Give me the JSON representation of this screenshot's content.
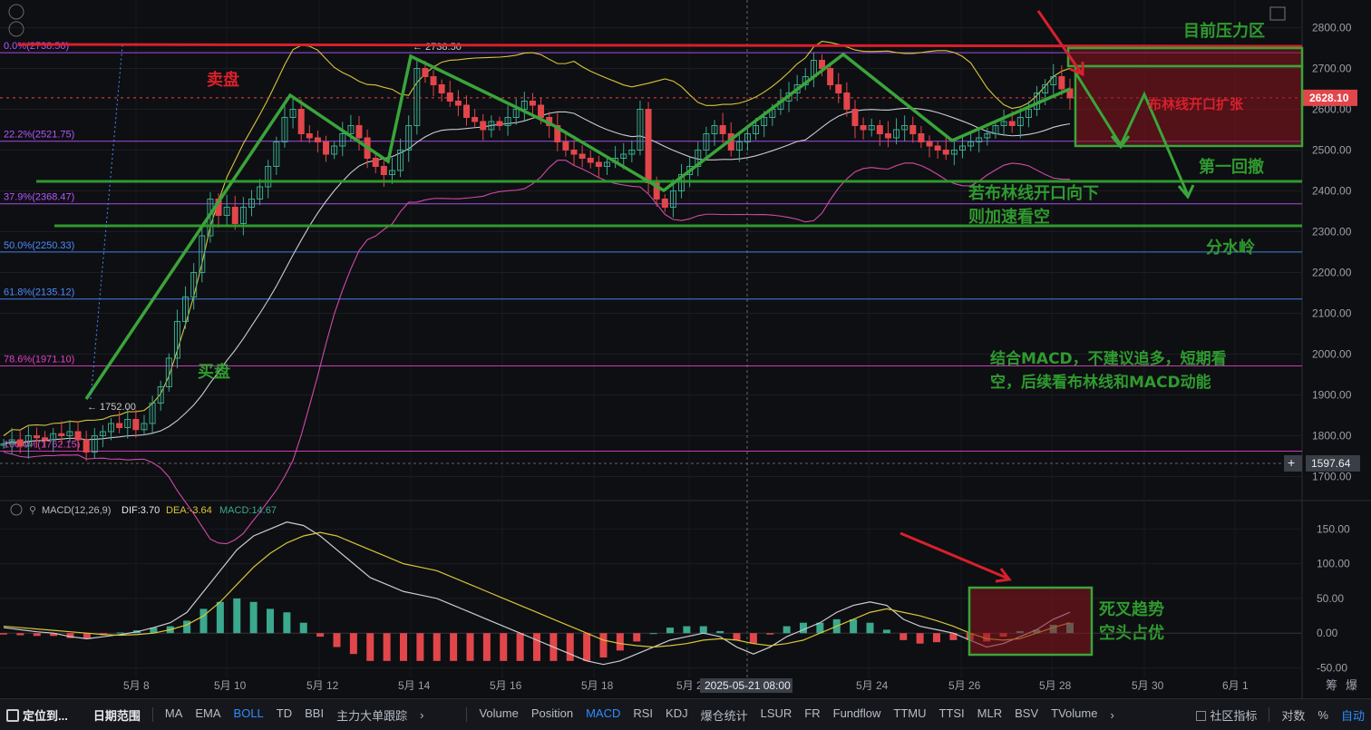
{
  "chart_data": {
    "type": "candlestick",
    "price_axis": {
      "ticks": [
        "2800.00",
        "2700.00",
        "2600.00",
        "2500.00",
        "2400.00",
        "2300.00",
        "2200.00",
        "2100.00",
        "2000.00",
        "1900.00",
        "1800.00",
        "1700.00"
      ],
      "current_price": "2628.10",
      "crosshair_price": "1597.64"
    },
    "date_axis": {
      "ticks": [
        "5月 8",
        "5月 10",
        "5月 12",
        "5月 14",
        "5月 16",
        "5月 18",
        "5月 20",
        "5月 24",
        "5月 26",
        "5月 28",
        "5月 30",
        "6月 1"
      ],
      "crosshair_time": "2025-05-21 08:00"
    },
    "fib_levels": [
      {
        "label": "0.0%(2738.50)",
        "price": 2738.5,
        "color": "#b455ff"
      },
      {
        "label": "22.2%(2521.75)",
        "price": 2521.75,
        "color": "#b455ff"
      },
      {
        "label": "37.9%(2368.47)",
        "price": 2368.47,
        "color": "#b455ff"
      },
      {
        "label": "50.0%(2250.33)",
        "price": 2250.33,
        "color": "#4c8bff"
      },
      {
        "label": "61.8%(2135.12)",
        "price": 2135.12,
        "color": "#4c8bff"
      },
      {
        "label": "78.6%(1971.10)",
        "price": 1971.1,
        "color": "#e040c8"
      },
      {
        "label": "100.0%(1762.15)",
        "price": 1762.15,
        "color": "#e040c8"
      }
    ],
    "extremes": {
      "high_label": "2738.50",
      "low_label": "1752.00"
    },
    "price_path": [
      1780,
      1790,
      1775,
      1800,
      1795,
      1790,
      1805,
      1800,
      1810,
      1790,
      1760,
      1800,
      1810,
      1830,
      1820,
      1840,
      1815,
      1830,
      1880,
      1920,
      1990,
      2080,
      2140,
      2200,
      2290,
      2380,
      2340,
      2360,
      2320,
      2360,
      2380,
      2410,
      2460,
      2520,
      2580,
      2600,
      2540,
      2530,
      2520,
      2490,
      2510,
      2540,
      2560,
      2530,
      2480,
      2460,
      2440,
      2450,
      2500,
      2560,
      2700,
      2680,
      2660,
      2640,
      2620,
      2610,
      2580,
      2570,
      2550,
      2570,
      2560,
      2580,
      2600,
      2620,
      2610,
      2580,
      2560,
      2520,
      2500,
      2490,
      2480,
      2470,
      2460,
      2470,
      2480,
      2490,
      2500,
      2600,
      2420,
      2380,
      2360,
      2400,
      2440,
      2460,
      2500,
      2540,
      2560,
      2540,
      2500,
      2520,
      2540,
      2560,
      2580,
      2600,
      2620,
      2640,
      2660,
      2680,
      2720,
      2700,
      2660,
      2640,
      2600,
      2560,
      2550,
      2560,
      2540,
      2530,
      2550,
      2560,
      2540,
      2520,
      2510,
      2500,
      2490,
      2500,
      2510,
      2520,
      2530,
      2540,
      2560,
      2570,
      2560,
      2580,
      2600,
      2640,
      2660,
      2680,
      2650,
      2628
    ],
    "macd": {
      "label": "MACD(12,26,9)",
      "dif_label": "DIF:3.70",
      "dea_label": "DEA:-3.64",
      "hist_label": "MACD:14.67",
      "axis_ticks": [
        "150.00",
        "100.00",
        "50.00",
        "0.00",
        "-50.00"
      ],
      "dif": [
        8,
        5,
        2,
        0,
        -5,
        -8,
        -5,
        -2,
        2,
        8,
        15,
        30,
        60,
        90,
        120,
        140,
        150,
        160,
        155,
        140,
        120,
        100,
        80,
        70,
        60,
        55,
        50,
        40,
        30,
        20,
        10,
        0,
        -10,
        -20,
        -30,
        -40,
        -45,
        -40,
        -30,
        -20,
        -10,
        -5,
        0,
        -5,
        -20,
        -30,
        -20,
        -5,
        5,
        15,
        30,
        40,
        45,
        40,
        20,
        10,
        5,
        0,
        -10,
        -20,
        -15,
        -5,
        5,
        20,
        30
      ],
      "dea": [
        10,
        8,
        6,
        4,
        2,
        0,
        -2,
        -3,
        -2,
        0,
        5,
        12,
        25,
        45,
        70,
        95,
        115,
        130,
        140,
        145,
        140,
        130,
        120,
        110,
        100,
        95,
        90,
        80,
        70,
        60,
        50,
        40,
        30,
        20,
        10,
        0,
        -10,
        -15,
        -18,
        -20,
        -18,
        -15,
        -10,
        -8,
        -10,
        -15,
        -18,
        -15,
        -10,
        0,
        10,
        20,
        30,
        35,
        30,
        25,
        18,
        10,
        0,
        -8,
        -10,
        -8,
        0,
        8,
        15
      ],
      "hist": [
        -2,
        -3,
        -4,
        -4,
        -7,
        -8,
        -3,
        1,
        4,
        8,
        10,
        18,
        35,
        45,
        50,
        45,
        35,
        30,
        15,
        -5,
        -20,
        -30,
        -40,
        -40,
        -40,
        -40,
        -40,
        -40,
        -40,
        -40,
        -40,
        -40,
        -40,
        -40,
        -40,
        -40,
        -35,
        -25,
        -12,
        0,
        8,
        10,
        10,
        3,
        -10,
        -15,
        -2,
        10,
        15,
        15,
        20,
        20,
        15,
        5,
        -10,
        -15,
        -13,
        -10,
        -10,
        -12,
        -5,
        3,
        5,
        12,
        15
      ]
    },
    "annotations": [
      {
        "id": "sell",
        "text": "卖盘",
        "color": "#d8202c"
      },
      {
        "id": "buy",
        "text": "买盘",
        "color": "#2f9a2f"
      },
      {
        "id": "pressure",
        "text": "目前压力区",
        "color": "#2f9a2f"
      },
      {
        "id": "boll",
        "text": "布林线开口扩张",
        "color": "#d8202c"
      },
      {
        "id": "pullback",
        "text": "第一回撤",
        "color": "#2f9a2f"
      },
      {
        "id": "bear1",
        "text": "若布林线开口向下",
        "color": "#2f9a2f"
      },
      {
        "id": "bear2",
        "text": "则加速看空",
        "color": "#2f9a2f"
      },
      {
        "id": "watershed",
        "text": "分水岭",
        "color": "#2f9a2f"
      },
      {
        "id": "macd1",
        "text": "结合MACD，不建议追多，短期看",
        "color": "#2f9a2f"
      },
      {
        "id": "macd2",
        "text": "空，后续看布林线和MACD动能",
        "color": "#2f9a2f"
      },
      {
        "id": "dead1",
        "text": "死叉趋势",
        "color": "#2f9a2f"
      },
      {
        "id": "dead2",
        "text": "空头占优",
        "color": "#2f9a2f"
      }
    ],
    "corner_labels": [
      "筹",
      "爆"
    ]
  },
  "toolbar": {
    "left": [
      "定位到...",
      "日期范围"
    ],
    "indicators": [
      "MA",
      "EMA",
      "BOLL",
      "TD",
      "BBI",
      "主力大单跟踪"
    ],
    "sub_indicators": [
      "Volume",
      "Position",
      "MACD",
      "RSI",
      "KDJ",
      "爆仓统计",
      "LSUR",
      "FR",
      "Fundflow",
      "TTMU",
      "TTSI",
      "MLR",
      "BSV",
      "TVolume"
    ],
    "right": [
      "社区指标",
      "对数",
      "%",
      "自动"
    ]
  },
  "colors": {
    "up": "#3aa98e",
    "down": "#e2464b",
    "bg": "#0e0f12",
    "annot_green": "#2f9a2f",
    "annot_red": "#d8202c"
  }
}
